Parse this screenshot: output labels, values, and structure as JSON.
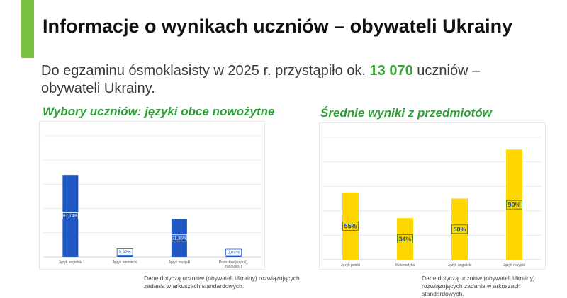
{
  "header": {
    "title": "Informacje o wynikach uczniów – obywateli Ukrainy",
    "accent_color": "#7cc242"
  },
  "intro": {
    "before": "Do egzaminu ósmoklasisty w 2025 r. przystąpiło ok. ",
    "highlight": "13 070",
    "after": " uczniów – obywateli Ukrainy."
  },
  "charts": {
    "left_title": "Wybory uczniów: języki obce nowożytne",
    "right_title": "Średnie wyniki z przedmiotów",
    "left_note": "Dane dotyczą uczniów (obywateli Ukrainy) rozwiązujących zadania w arkuszach standardowych.",
    "right_note": "Dane dotyczą uczniów (obywateli Ukrainy) rozwiązujących zadania w arkuszach standardowych."
  },
  "chart_data": [
    {
      "type": "bar",
      "title": "Wybory uczniów: języki obce nowożytne",
      "categories": [
        "Język angielski",
        "Język niemiecki",
        "Język rosyjski",
        "Pozostałe języki (j. francuski, j. hiszpański, j. włoski)"
      ],
      "values": [
        67.74,
        0.92,
        31.3,
        0.04
      ],
      "labels": [
        "67,74%",
        "0,92%",
        "31,30%",
        "0,04%"
      ],
      "ylim": [
        0,
        100
      ],
      "grid": true,
      "color": "#1f57c3"
    },
    {
      "type": "bar",
      "title": "Średnie wyniki z przedmiotów",
      "categories": [
        "Język polski",
        "Matematyka",
        "Język angielski",
        "Język rosyjski"
      ],
      "values": [
        55,
        34,
        50,
        90
      ],
      "labels": [
        "55%",
        "34%",
        "50%",
        "90%"
      ],
      "ylim": [
        0,
        100
      ],
      "grid": true,
      "color": "#ffd700"
    }
  ]
}
